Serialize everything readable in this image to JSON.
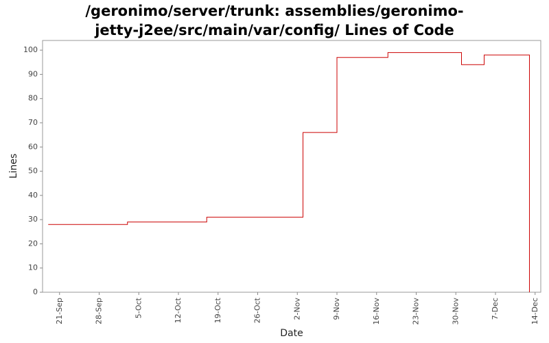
{
  "chart_data": {
    "type": "step-line",
    "title": "/geronimo/server/trunk: assemblies/geronimo-jetty-j2ee/src/main/var/config/ Lines of Code",
    "x_label": "Date",
    "y_label": "Lines",
    "x": [
      "19-Sep",
      "3-Oct",
      "17-Oct",
      "3-Nov",
      "9-Nov",
      "18-Nov",
      "1-Dec",
      "5-Dec",
      "13-Dec"
    ],
    "series": [
      {
        "name": "Lines",
        "color": "#cc0000",
        "values": [
          28,
          29,
          31,
          66,
          97,
          99,
          94,
          98,
          0
        ]
      }
    ],
    "xlim": [
      "18-Sep",
      "15-Dec"
    ],
    "xticks": [
      "21-Sep",
      "28-Sep",
      "5-Oct",
      "12-Oct",
      "19-Oct",
      "26-Oct",
      "2-Nov",
      "9-Nov",
      "16-Nov",
      "23-Nov",
      "30-Nov",
      "7-Dec",
      "14-Dec"
    ],
    "ylim": [
      0,
      104
    ],
    "yticks": [
      0,
      10,
      20,
      30,
      40,
      50,
      60,
      70,
      80,
      90,
      100
    ],
    "grid": false
  }
}
